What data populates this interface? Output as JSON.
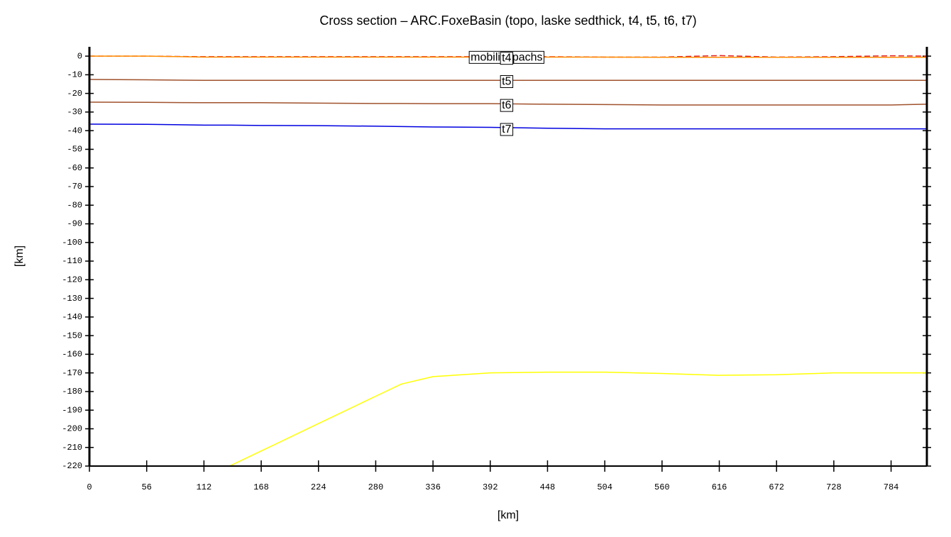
{
  "chart_data": {
    "type": "line",
    "title": "Cross section – ARC.FoxeBasin (topo, laske sedthick, t4, t5, t6, t7)",
    "x_label": "[km]",
    "y_label": "[km]",
    "annotation": "mobilisopachs",
    "x": [
      0,
      56,
      112,
      137,
      168,
      224,
      280,
      305,
      336,
      392,
      448,
      504,
      560,
      616,
      672,
      728,
      784,
      819
    ],
    "series": [
      {
        "color": "#e02020",
        "dashed": true,
        "values": [
          0,
          0,
          -0.3,
          -0.3,
          -0.3,
          -0.3,
          -0.3,
          -0.3,
          -0.3,
          -0.3,
          -0.3,
          -0.5,
          -0.5,
          0.3,
          -0.5,
          -0.3,
          0.2,
          0
        ]
      },
      {
        "name": "t4",
        "color": "#ff8c00",
        "values": [
          0,
          0,
          -0.5,
          -0.5,
          -0.5,
          -0.5,
          -0.5,
          -0.5,
          -0.5,
          -0.5,
          -0.5,
          -0.5,
          -0.6,
          -0.6,
          -0.6,
          -0.6,
          -0.6,
          -0.6
        ]
      },
      {
        "name": "t5",
        "color": "#a0522d",
        "values": [
          -12.5,
          -12.7,
          -13,
          -13,
          -13,
          -13,
          -13,
          -13,
          -13,
          -13,
          -13,
          -13,
          -13,
          -13,
          -13,
          -13,
          -13,
          -13
        ]
      },
      {
        "name": "t6",
        "color": "#a0522d",
        "values": [
          -24.7,
          -24.8,
          -25,
          -25,
          -25,
          -25.2,
          -25.4,
          -25.4,
          -25.5,
          -25.5,
          -25.8,
          -26,
          -26.2,
          -26.2,
          -26.2,
          -26.2,
          -26.2,
          -25.8
        ]
      },
      {
        "name": "t7",
        "color": "#0000e0",
        "values": [
          -36.5,
          -36.6,
          -37,
          -37,
          -37.2,
          -37.3,
          -37.6,
          -37.8,
          -38,
          -38.2,
          -38.7,
          -39,
          -39,
          -39,
          -39,
          -39,
          -39,
          -39
        ]
      },
      {
        "color": "#ffff00",
        "values": [
          null,
          null,
          null,
          -220,
          -211.9,
          -197.2,
          -182.5,
          -176,
          -172,
          -170,
          -169.6,
          -169.6,
          -170.3,
          -171.3,
          -171,
          -170,
          -170,
          -170
        ]
      }
    ],
    "label_x": 408,
    "xlim": [
      0,
      819
    ],
    "ylim": [
      -220,
      5
    ],
    "xticks": [
      0,
      56,
      112,
      168,
      224,
      280,
      336,
      392,
      448,
      504,
      560,
      616,
      672,
      728,
      784
    ],
    "yticks": [
      0,
      -10,
      -20,
      -30,
      -40,
      -50,
      -60,
      -70,
      -80,
      -90,
      -100,
      -110,
      -120,
      -130,
      -140,
      -150,
      -160,
      -170,
      -180,
      -190,
      -200,
      -210,
      -220
    ]
  }
}
